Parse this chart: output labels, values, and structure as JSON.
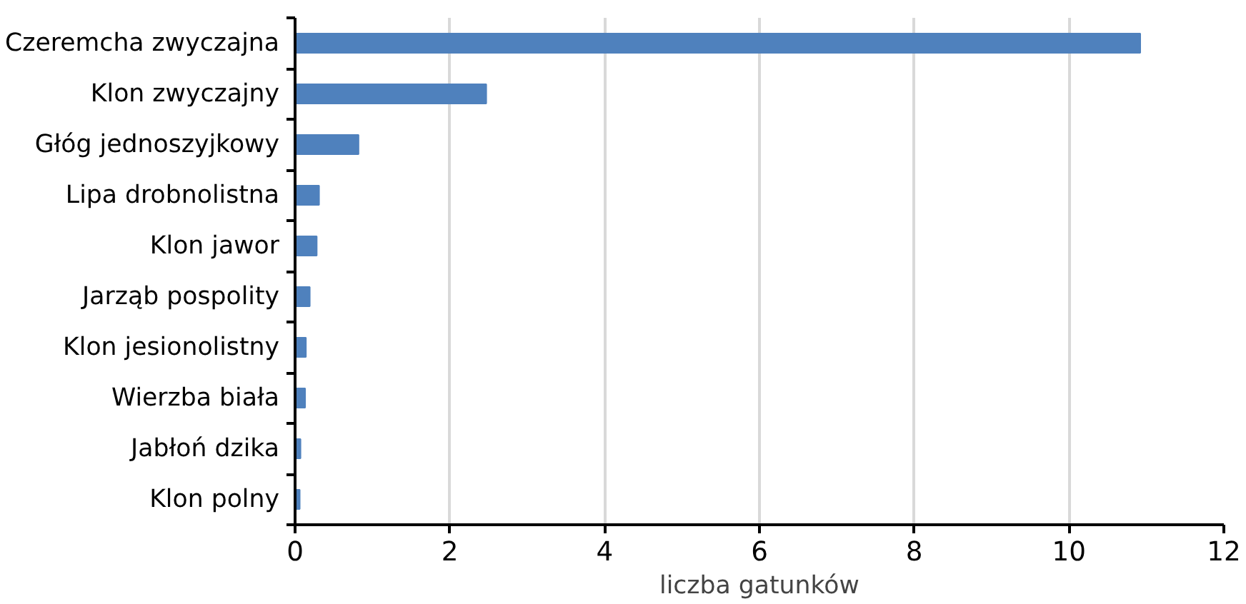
{
  "chart_data": {
    "type": "bar",
    "orientation": "horizontal",
    "xlabel": "liczba gatunków",
    "categories": [
      "Czeremcha zwyczajna",
      "Klon zwyczajny",
      "Głóg jednoszyjkowy",
      "Lipa drobnolistna",
      "Klon jawor",
      "Jarząb pospolity",
      "Klon jesionolistny",
      "Wierzba biała",
      "Jabłoń dzika",
      "Klon polny"
    ],
    "values": [
      10.92,
      2.47,
      0.82,
      0.31,
      0.28,
      0.19,
      0.14,
      0.13,
      0.07,
      0.06
    ],
    "color": "#4f81bd",
    "xlim": [
      0,
      12
    ],
    "xticks": [
      0,
      2,
      4,
      6,
      8,
      10,
      12
    ],
    "grid": "x"
  }
}
